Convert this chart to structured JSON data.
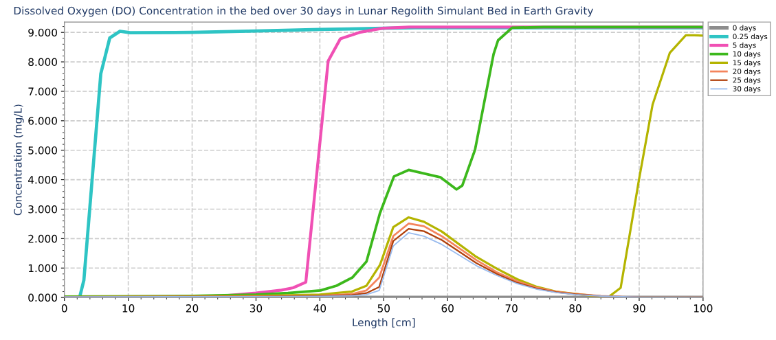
{
  "chart_data": {
    "type": "line",
    "title": "Dissolved Oxygen (DO) Concentration in the bed over 30 days in Lunar Regolith Simulant Bed in Earth Gravity",
    "xlabel": "Length [cm]",
    "ylabel": "Concentration (mg/L)",
    "xlim": [
      0,
      100
    ],
    "xticks": [
      0,
      10,
      20,
      30,
      40,
      50,
      60,
      70,
      80,
      90,
      100
    ],
    "ylim": [
      0,
      9.35
    ],
    "yticks": [
      {
        "value": 0,
        "label": "0.000"
      },
      {
        "value": 1,
        "label": "1.000"
      },
      {
        "value": 2,
        "label": "2.000"
      },
      {
        "value": 3,
        "label": "3.000"
      },
      {
        "value": 4,
        "label": "4.000"
      },
      {
        "value": 5,
        "label": "5.000"
      },
      {
        "value": 6,
        "label": "6.000"
      },
      {
        "value": 7,
        "label": "7.000"
      },
      {
        "value": 8,
        "label": "8.000"
      },
      {
        "value": 9,
        "label": "9.000"
      }
    ],
    "grid": true,
    "legend": "top right",
    "marker": "none",
    "line_style": "solid",
    "series": [
      {
        "name": "0 days",
        "color": "#8c8c8c",
        "x": [
          0,
          100
        ],
        "values": [
          0,
          0
        ]
      },
      {
        "name": "0.25 days",
        "color": "#2ec4c4",
        "x": [
          0,
          2.4,
          3.05,
          5.7,
          7.1,
          8.7,
          10.3,
          20,
          30,
          40,
          50,
          55,
          100
        ],
        "values": [
          0.02,
          0.02,
          0.59,
          7.6,
          8.81,
          9.04,
          8.99,
          9.0,
          9.05,
          9.1,
          9.14,
          9.16,
          9.16
        ]
      },
      {
        "name": "5 days",
        "color": "#f050b4",
        "x": [
          0,
          20,
          25,
          30,
          34,
          35.8,
          37.8,
          41.3,
          43.2,
          46.2,
          49.8,
          54,
          100
        ],
        "values": [
          0.02,
          0.03,
          0.06,
          0.15,
          0.25,
          0.33,
          0.52,
          8.03,
          8.78,
          9.0,
          9.14,
          9.18,
          9.18
        ]
      },
      {
        "name": "10 days",
        "color": "#3cb81c",
        "x": [
          0,
          20,
          30,
          35,
          40.1,
          42.6,
          45.1,
          47.3,
          49.4,
          51.6,
          53.9,
          58.9,
          61.4,
          62.3,
          64.3,
          67.2,
          67.9,
          70.1,
          75,
          100
        ],
        "values": [
          0.03,
          0.05,
          0.1,
          0.15,
          0.24,
          0.4,
          0.68,
          1.22,
          2.86,
          4.11,
          4.33,
          4.08,
          3.67,
          3.8,
          5.02,
          8.26,
          8.73,
          9.16,
          9.18,
          9.18
        ]
      },
      {
        "name": "15 days",
        "color": "#b4b400",
        "x": [
          0,
          30,
          40,
          45,
          47.3,
          49.4,
          51.5,
          53.9,
          56.3,
          59.1,
          64.5,
          67.7,
          70.9,
          74,
          77,
          80,
          84,
          85.1,
          87.1,
          90,
          92.1,
          94.8,
          97.3,
          98.6,
          100
        ],
        "values": [
          0.02,
          0.05,
          0.1,
          0.2,
          0.4,
          1.1,
          2.39,
          2.72,
          2.57,
          2.24,
          1.38,
          0.98,
          0.62,
          0.36,
          0.2,
          0.12,
          0.03,
          0,
          0.33,
          4.04,
          6.55,
          8.31,
          8.9,
          8.9,
          8.89
        ]
      },
      {
        "name": "20 days",
        "color": "#f4845c",
        "x": [
          0,
          30,
          40,
          45,
          47.3,
          49.3,
          51.5,
          53.9,
          56.3,
          59.1,
          64.5,
          67.7,
          70.9,
          74,
          77,
          80,
          84,
          90,
          100
        ],
        "values": [
          0.02,
          0.04,
          0.06,
          0.12,
          0.24,
          0.68,
          2.09,
          2.51,
          2.42,
          2.08,
          1.27,
          0.86,
          0.55,
          0.33,
          0.2,
          0.12,
          0.05,
          0,
          0
        ]
      },
      {
        "name": "25 days",
        "color": "#b0400c",
        "x": [
          0,
          30,
          40,
          45,
          47.3,
          49.3,
          51.5,
          53.9,
          56.3,
          59.1,
          64.5,
          67.7,
          70.9,
          74,
          77,
          80,
          84,
          90,
          100
        ],
        "values": [
          0.02,
          0.03,
          0.05,
          0.08,
          0.15,
          0.36,
          1.92,
          2.33,
          2.25,
          1.95,
          1.17,
          0.8,
          0.5,
          0.3,
          0.18,
          0.11,
          0.05,
          0,
          0
        ]
      },
      {
        "name": "30 days",
        "color": "#99bbee",
        "x": [
          0,
          30,
          40,
          45,
          47.3,
          49.3,
          51.5,
          53.9,
          56.3,
          59.1,
          64.5,
          67.7,
          70.9,
          74,
          77,
          80,
          84,
          90,
          100
        ],
        "values": [
          0.02,
          0.03,
          0.04,
          0.06,
          0.1,
          0.24,
          1.75,
          2.2,
          2.08,
          1.8,
          1.08,
          0.75,
          0.47,
          0.28,
          0.17,
          0.1,
          0.05,
          0.01,
          0
        ]
      }
    ]
  }
}
